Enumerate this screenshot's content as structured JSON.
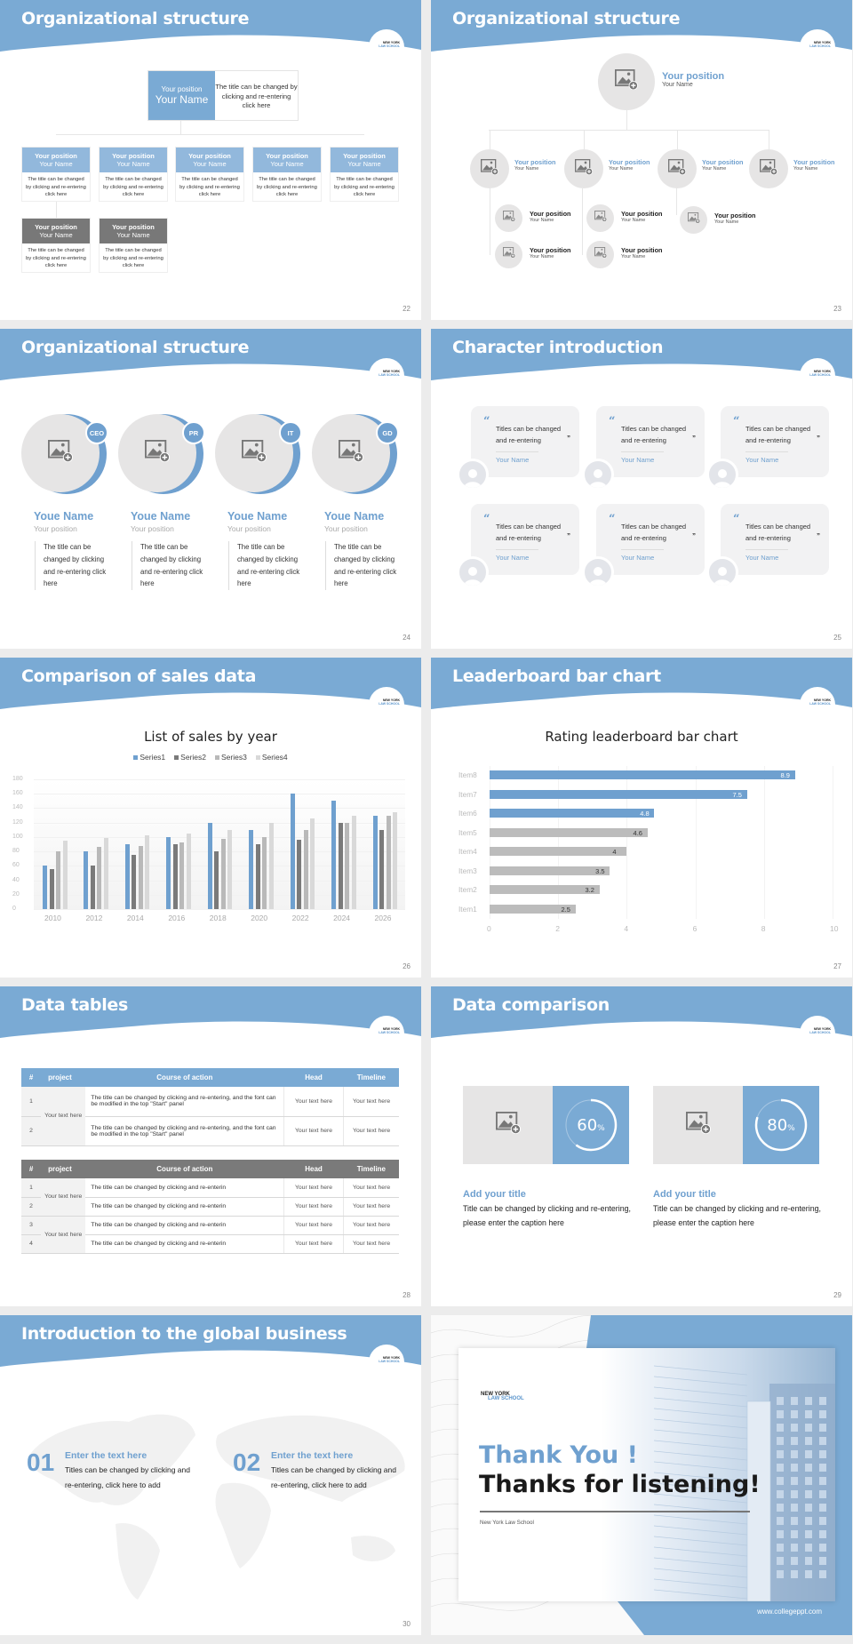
{
  "theme": {
    "accent": "#7aaad4",
    "accent_text": "#6fa0cf",
    "gray_dark": "#787878",
    "gray_light": "#e6e5e5",
    "background": "#ececec"
  },
  "logo": {
    "line1": "NEW YORK",
    "line2": "LAW SCHOOL"
  },
  "slides": {
    "s22": {
      "title": "Organizational structure",
      "page": "22",
      "top": {
        "position": "Your position",
        "name": "Your Name",
        "desc": "The title can be changed by clicking and re-entering click here"
      },
      "boxes": [
        {
          "position": "Your position",
          "name": "Your Name",
          "desc": "The title can be changed by clicking and re-entering click here",
          "style": "blue"
        },
        {
          "position": "Your position",
          "name": "Your Name",
          "desc": "The title can be changed by clicking and re-entering click here",
          "style": "blue"
        },
        {
          "position": "Your position",
          "name": "Your Name",
          "desc": "The title can be changed by clicking and re-entering click here",
          "style": "blue"
        },
        {
          "position": "Your position",
          "name": "Your Name",
          "desc": "The title can be changed by clicking and re-entering click here",
          "style": "blue"
        },
        {
          "position": "Your position",
          "name": "Your Name",
          "desc": "The title can be changed by clicking and re-entering click here",
          "style": "blue"
        },
        {
          "position": "Your position",
          "name": "Your Name",
          "desc": "The title can be changed by clicking and re-entering click here",
          "style": "gray"
        },
        {
          "position": "Your position",
          "name": "Your Name",
          "desc": "The title can be changed by clicking and re-entering click here",
          "style": "gray"
        }
      ]
    },
    "s23": {
      "title": "Organizational structure",
      "page": "23",
      "top": {
        "position": "Your position",
        "name": "Your Name"
      },
      "level2": [
        {
          "position": "Your position",
          "name": "Your Name"
        },
        {
          "position": "Your position",
          "name": "Your Name"
        },
        {
          "position": "Your position",
          "name": "Your Name"
        },
        {
          "position": "Your position",
          "name": "Your Name"
        }
      ],
      "level3": [
        {
          "position": "Your position",
          "name": "Your Name"
        },
        {
          "position": "Your position",
          "name": "Your Name"
        },
        {
          "position": "Your position",
          "name": "Your Name"
        },
        {
          "position": "Your position",
          "name": "Your Name"
        },
        {
          "position": "Your position",
          "name": "Your Name"
        }
      ]
    },
    "s24": {
      "title": "Organizational structure",
      "page": "24",
      "people": [
        {
          "tag": "CEO",
          "name": "Youe Name",
          "position": "Your position",
          "desc": "The title can be changed by clicking and re-entering click here"
        },
        {
          "tag": "PR",
          "name": "Youe Name",
          "position": "Your position",
          "desc": "The title can be changed by clicking and re-entering click here"
        },
        {
          "tag": "IT",
          "name": "Youe Name",
          "position": "Your position",
          "desc": "The title can be changed by clicking and re-entering click here"
        },
        {
          "tag": "GD",
          "name": "Youe Name",
          "position": "Your position",
          "desc": "The title can be changed by clicking and re-entering click here"
        }
      ]
    },
    "s25": {
      "title": "Character introduction",
      "page": "25",
      "cards": [
        {
          "quote": "Titles can be changed and re-entering",
          "name": "Your Name"
        },
        {
          "quote": "Titles can be changed and re-entering",
          "name": "Your Name"
        },
        {
          "quote": "Titles can be changed and re-entering",
          "name": "Your Name"
        },
        {
          "quote": "Titles can be changed and re-entering",
          "name": "Your Name"
        },
        {
          "quote": "Titles can be changed and re-entering",
          "name": "Your Name"
        },
        {
          "quote": "Titles can be changed and re-entering",
          "name": "Your Name"
        }
      ],
      "open_quote": "“",
      "close_quote": "”"
    },
    "s26": {
      "title": "Comparison of sales data",
      "page": "26"
    },
    "s27": {
      "title": "Leaderboard bar chart",
      "page": "27"
    },
    "s28": {
      "title": "Data tables",
      "page": "28",
      "headers": [
        "#",
        "project",
        "Course of action",
        "Head",
        "Timeline"
      ],
      "table1": {
        "project": "Your text here",
        "rows": [
          {
            "num": "1",
            "action": "The title can be changed by clicking and re-entering, and the font can be modified in the top \"Start\" panel",
            "head": "Your text here",
            "timeline": "Your text here"
          },
          {
            "num": "2",
            "action": "The title can be changed by clicking and re-entering, and the font can be modified in the top \"Start\" panel",
            "head": "Your text here",
            "timeline": "Your text here"
          }
        ]
      },
      "table2": {
        "projects": [
          "Your text here",
          "Your text here"
        ],
        "rows": [
          {
            "num": "1",
            "action": "The title can be changed by clicking and re-enterin",
            "head": "Your text here",
            "timeline": "Your text here"
          },
          {
            "num": "2",
            "action": "The title can be changed by clicking and re-enterin",
            "head": "Your text here",
            "timeline": "Your text here"
          },
          {
            "num": "3",
            "action": "The title can be changed by clicking and re-enterin",
            "head": "Your text here",
            "timeline": "Your text here"
          },
          {
            "num": "4",
            "action": "The title can be changed by clicking and re-enterin",
            "head": "Your text here",
            "timeline": "Your text here"
          }
        ]
      }
    },
    "s29": {
      "title": "Data comparison",
      "page": "29",
      "items": [
        {
          "percent": "60",
          "unit": "%",
          "title": "Add your title",
          "desc": "Title can be changed by clicking and re-entering, please enter the caption here"
        },
        {
          "percent": "80",
          "unit": "%",
          "title": "Add your title",
          "desc": "Title can be changed by clicking and re-entering, please enter the caption here"
        }
      ]
    },
    "s30": {
      "title": "Introduction to the global business",
      "page": "30",
      "items": [
        {
          "num": "01",
          "title": "Enter the text here",
          "desc": "Titles can be changed by clicking and re-entering, click here to add"
        },
        {
          "num": "02",
          "title": "Enter the text here",
          "desc": "Titles can be changed by clicking and re-entering, click here to add"
        }
      ]
    },
    "s31": {
      "logo_line1": "NEW YORK",
      "logo_line2": "LAW SCHOOL",
      "thank": "Thank You !",
      "thanks": "Thanks for listening!",
      "school": "New York Law School",
      "url": "www.collegeppt.com"
    }
  },
  "chart_data": [
    {
      "type": "bar",
      "title": "List of sales by year",
      "categories": [
        "2010",
        "2012",
        "2014",
        "2016",
        "2018",
        "2020",
        "2022",
        "2024",
        "2026"
      ],
      "series": [
        {
          "name": "Series1",
          "color": "#6fa0cf",
          "values": [
            60,
            80,
            90,
            100,
            120,
            110,
            160,
            150,
            130
          ]
        },
        {
          "name": "Series2",
          "color": "#7a7a7a",
          "values": [
            55,
            60,
            75,
            90,
            80,
            90,
            96,
            120,
            110
          ]
        },
        {
          "name": "Series3",
          "color": "#b9b9b9",
          "values": [
            80,
            86,
            88,
            92,
            98,
            100,
            110,
            120,
            130
          ]
        },
        {
          "name": "Series4",
          "color": "#d9d9d9",
          "values": [
            95,
            99,
            102,
            105,
            110,
            120,
            126,
            130,
            135
          ]
        }
      ],
      "yticks": [
        "0",
        "20",
        "40",
        "60",
        "80",
        "100",
        "120",
        "140",
        "160",
        "180"
      ],
      "ylim": [
        0,
        180
      ],
      "legend_position": "top",
      "grid": true
    },
    {
      "type": "bar",
      "orientation": "horizontal",
      "title": "Rating leaderboard bar chart",
      "categories": [
        "Item8",
        "Item7",
        "Item6",
        "Item5",
        "Item4",
        "Item3",
        "Item2",
        "Item1"
      ],
      "values": [
        8.9,
        7.5,
        4.8,
        4.6,
        4,
        3.5,
        3.2,
        2.5
      ],
      "highlight_top": 3,
      "xticks": [
        "0",
        "2",
        "4",
        "6",
        "8",
        "10"
      ],
      "xlim": [
        0,
        10
      ],
      "grid": true
    }
  ]
}
